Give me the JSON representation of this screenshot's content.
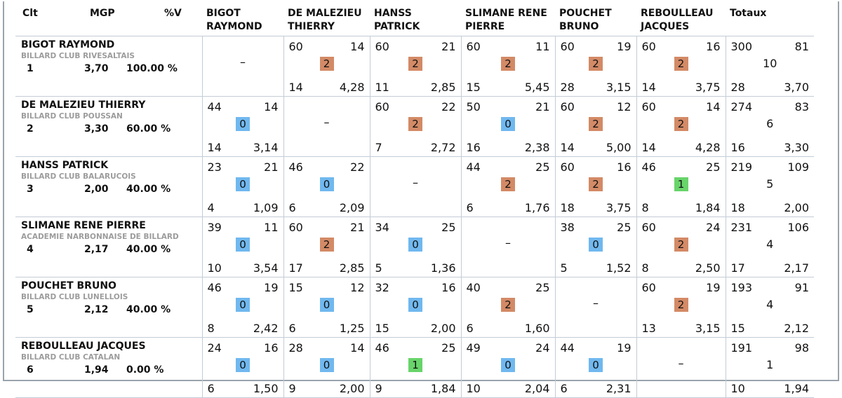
{
  "colors": {
    "win": "#d38a66",
    "draw": "#68d46a",
    "loss": "#70b8ef"
  },
  "headers": {
    "clt": "Clt",
    "mgp": "MGP",
    "pv": "%V",
    "opponents": [
      "BIGOT RAYMOND",
      "DE MALEZIEU THIERRY",
      "HANSS PATRICK",
      "SLIMANE RENE PIERRE",
      "POUCHET BRUNO",
      "REBOULLEAU JACQUES"
    ],
    "totals": "Totaux"
  },
  "rows": [
    {
      "name": "BIGOT RAYMOND",
      "club": "BILLARD CLUB RIVESALTAIS",
      "rank": "1",
      "mgp": "3,70",
      "pv": "100.00 %",
      "results": [
        null,
        {
          "pts": "60",
          "rep": "14",
          "score": "2",
          "serie": "14",
          "moy": "4,28"
        },
        {
          "pts": "60",
          "rep": "21",
          "score": "2",
          "serie": "11",
          "moy": "2,85"
        },
        {
          "pts": "60",
          "rep": "11",
          "score": "2",
          "serie": "15",
          "moy": "5,45"
        },
        {
          "pts": "60",
          "rep": "19",
          "score": "2",
          "serie": "28",
          "moy": "3,15"
        },
        {
          "pts": "60",
          "rep": "16",
          "score": "2",
          "serie": "14",
          "moy": "3,75"
        }
      ],
      "totals": {
        "pts": "300",
        "rep": "81",
        "score": "10",
        "serie": "28",
        "moy": "3,70"
      }
    },
    {
      "name": "DE MALEZIEU THIERRY",
      "club": "BILLARD CLUB POUSSAN",
      "rank": "2",
      "mgp": "3,30",
      "pv": "60.00 %",
      "results": [
        {
          "pts": "44",
          "rep": "14",
          "score": "0",
          "serie": "14",
          "moy": "3,14"
        },
        null,
        {
          "pts": "60",
          "rep": "22",
          "score": "2",
          "serie": "7",
          "moy": "2,72"
        },
        {
          "pts": "50",
          "rep": "21",
          "score": "0",
          "serie": "16",
          "moy": "2,38"
        },
        {
          "pts": "60",
          "rep": "12",
          "score": "2",
          "serie": "14",
          "moy": "5,00"
        },
        {
          "pts": "60",
          "rep": "14",
          "score": "2",
          "serie": "14",
          "moy": "4,28"
        }
      ],
      "totals": {
        "pts": "274",
        "rep": "83",
        "score": "6",
        "serie": "16",
        "moy": "3,30"
      }
    },
    {
      "name": "HANSS PATRICK",
      "club": "BILLARD CLUB BALARUCOIS",
      "rank": "3",
      "mgp": "2,00",
      "pv": "40.00 %",
      "results": [
        {
          "pts": "23",
          "rep": "21",
          "score": "0",
          "serie": "4",
          "moy": "1,09"
        },
        {
          "pts": "46",
          "rep": "22",
          "score": "0",
          "serie": "6",
          "moy": "2,09"
        },
        null,
        {
          "pts": "44",
          "rep": "25",
          "score": "2",
          "serie": "6",
          "moy": "1,76"
        },
        {
          "pts": "60",
          "rep": "16",
          "score": "2",
          "serie": "18",
          "moy": "3,75"
        },
        {
          "pts": "46",
          "rep": "25",
          "score": "1",
          "serie": "8",
          "moy": "1,84"
        }
      ],
      "totals": {
        "pts": "219",
        "rep": "109",
        "score": "5",
        "serie": "18",
        "moy": "2,00"
      }
    },
    {
      "name": "SLIMANE RENE PIERRE",
      "club": "ACADEMIE NARBONNAISE DE BILLARD",
      "rank": "4",
      "mgp": "2,17",
      "pv": "40.00 %",
      "results": [
        {
          "pts": "39",
          "rep": "11",
          "score": "0",
          "serie": "10",
          "moy": "3,54"
        },
        {
          "pts": "60",
          "rep": "21",
          "score": "2",
          "serie": "17",
          "moy": "2,85"
        },
        {
          "pts": "34",
          "rep": "25",
          "score": "0",
          "serie": "5",
          "moy": "1,36"
        },
        null,
        {
          "pts": "38",
          "rep": "25",
          "score": "0",
          "serie": "5",
          "moy": "1,52"
        },
        {
          "pts": "60",
          "rep": "24",
          "score": "2",
          "serie": "8",
          "moy": "2,50"
        }
      ],
      "totals": {
        "pts": "231",
        "rep": "106",
        "score": "4",
        "serie": "17",
        "moy": "2,17"
      }
    },
    {
      "name": "POUCHET BRUNO",
      "club": "BILLARD CLUB LUNELLOIS",
      "rank": "5",
      "mgp": "2,12",
      "pv": "40.00 %",
      "results": [
        {
          "pts": "46",
          "rep": "19",
          "score": "0",
          "serie": "8",
          "moy": "2,42"
        },
        {
          "pts": "15",
          "rep": "12",
          "score": "0",
          "serie": "6",
          "moy": "1,25"
        },
        {
          "pts": "32",
          "rep": "16",
          "score": "0",
          "serie": "15",
          "moy": "2,00"
        },
        {
          "pts": "40",
          "rep": "25",
          "score": "2",
          "serie": "6",
          "moy": "1,60"
        },
        null,
        {
          "pts": "60",
          "rep": "19",
          "score": "2",
          "serie": "13",
          "moy": "3,15"
        }
      ],
      "totals": {
        "pts": "193",
        "rep": "91",
        "score": "4",
        "serie": "15",
        "moy": "2,12"
      }
    },
    {
      "name": "REBOULLEAU JACQUES",
      "club": "BILLARD CLUB CATALAN",
      "rank": "6",
      "mgp": "1,94",
      "pv": "0.00 %",
      "results": [
        {
          "pts": "24",
          "rep": "16",
          "score": "0",
          "serie": "6",
          "moy": "1,50"
        },
        {
          "pts": "28",
          "rep": "14",
          "score": "0",
          "serie": "9",
          "moy": "2,00"
        },
        {
          "pts": "46",
          "rep": "25",
          "score": "1",
          "serie": "9",
          "moy": "1,84"
        },
        {
          "pts": "49",
          "rep": "24",
          "score": "0",
          "serie": "10",
          "moy": "2,04"
        },
        {
          "pts": "44",
          "rep": "19",
          "score": "0",
          "serie": "6",
          "moy": "2,31"
        },
        null
      ],
      "totals": {
        "pts": "191",
        "rep": "98",
        "score": "1",
        "serie": "10",
        "moy": "1,94"
      }
    }
  ],
  "empty_mark": "–"
}
